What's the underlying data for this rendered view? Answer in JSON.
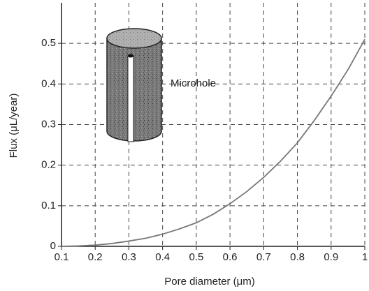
{
  "chart_data": {
    "type": "line",
    "x_label": "Pore diameter (μm)",
    "y_label": "Flux (μL/year)",
    "annotation": "Microhole",
    "x": [
      0.1,
      0.15,
      0.2,
      0.25,
      0.3,
      0.35,
      0.4,
      0.45,
      0.5,
      0.55,
      0.6,
      0.65,
      0.7,
      0.75,
      0.8,
      0.85,
      0.9,
      0.95,
      1.0
    ],
    "series": [
      {
        "color": "#777777",
        "values": [
          0,
          0.001,
          0.003,
          0.007,
          0.013,
          0.02,
          0.03,
          0.043,
          0.058,
          0.079,
          0.105,
          0.135,
          0.17,
          0.21,
          0.255,
          0.31,
          0.37,
          0.435,
          0.51
        ]
      }
    ],
    "xlim": [
      0.1,
      1
    ],
    "ylim": [
      0,
      0.6
    ],
    "xticks": [
      0.1,
      0.2,
      0.3,
      0.4,
      0.5,
      0.6,
      0.7,
      0.8,
      0.9,
      1
    ],
    "yticks": [
      0,
      0.1,
      0.2,
      0.3,
      0.4,
      0.5
    ],
    "grid": true
  }
}
